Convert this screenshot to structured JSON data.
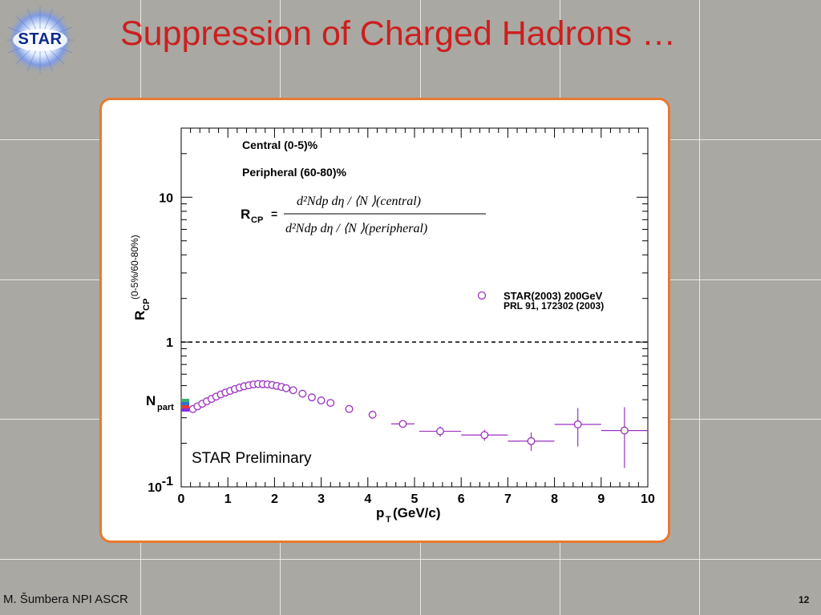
{
  "slide": {
    "title": "Suppression of Charged Hadrons …",
    "logo_text": "STAR",
    "footer_author": "M. Šumbera NPI ASCR",
    "page_number": "12"
  },
  "colors": {
    "title": "#cc1f1f",
    "panel_border": "#e8792e",
    "data_marker": "#9b30c0",
    "logo": "#0d2a8a"
  },
  "chart_data": {
    "type": "scatter",
    "title": "",
    "xlabel": "p",
    "xlabel_sub": "T",
    "xlabel_unit": "(GeV/c)",
    "ylabel": "R",
    "ylabel_sub": "CP",
    "ylabel_sup": "(0-5%/60-80%)",
    "x_range": [
      0,
      10
    ],
    "y_range": [
      0.1,
      30
    ],
    "y_scale": "log",
    "x_ticks": [
      "0",
      "1",
      "2",
      "3",
      "4",
      "5",
      "6",
      "7",
      "8",
      "9",
      "10"
    ],
    "y_ticks": [
      {
        "value": 10,
        "label": "10"
      },
      {
        "value": 1,
        "label": "1"
      },
      {
        "value": 0.1,
        "label": "10",
        "sup": "-1"
      }
    ],
    "reference_line": 1,
    "annotations": {
      "central": "Central (0-5)%",
      "peripheral": "Peripheral (60-80)%",
      "npart": "N",
      "npart_sub": "part",
      "preliminary": "STAR Preliminary",
      "formula_lhs": "R",
      "formula_lhs_sub": "CP",
      "formula_eq": "=",
      "formula_num": "d²Ndp dη / ⟨N ⟩(central)",
      "formula_den": "d²Ndp dη / ⟨N ⟩(peripheral)"
    },
    "legend": {
      "position": "right",
      "label": "STAR(2003) 200GeV",
      "reference": "PRL 91, 172302 (2003)"
    },
    "series": [
      {
        "name": "STAR(2003) 200GeV",
        "marker": "open-circle",
        "points": [
          {
            "x": 0.25,
            "y": 0.345
          },
          {
            "x": 0.35,
            "y": 0.36
          },
          {
            "x": 0.45,
            "y": 0.375
          },
          {
            "x": 0.55,
            "y": 0.39
          },
          {
            "x": 0.65,
            "y": 0.405
          },
          {
            "x": 0.75,
            "y": 0.42
          },
          {
            "x": 0.85,
            "y": 0.435
          },
          {
            "x": 0.95,
            "y": 0.448
          },
          {
            "x": 1.05,
            "y": 0.46
          },
          {
            "x": 1.15,
            "y": 0.473
          },
          {
            "x": 1.25,
            "y": 0.485
          },
          {
            "x": 1.35,
            "y": 0.495
          },
          {
            "x": 1.45,
            "y": 0.503
          },
          {
            "x": 1.55,
            "y": 0.51
          },
          {
            "x": 1.65,
            "y": 0.513
          },
          {
            "x": 1.75,
            "y": 0.512
          },
          {
            "x": 1.85,
            "y": 0.51
          },
          {
            "x": 1.95,
            "y": 0.505
          },
          {
            "x": 2.05,
            "y": 0.498
          },
          {
            "x": 2.15,
            "y": 0.49
          },
          {
            "x": 2.25,
            "y": 0.48
          },
          {
            "x": 2.4,
            "y": 0.465
          },
          {
            "x": 2.6,
            "y": 0.44
          },
          {
            "x": 2.8,
            "y": 0.415
          },
          {
            "x": 3.0,
            "y": 0.395
          },
          {
            "x": 3.2,
            "y": 0.38
          },
          {
            "x": 3.6,
            "y": 0.345
          },
          {
            "x": 4.1,
            "y": 0.315
          },
          {
            "x": 4.75,
            "y": 0.272,
            "xerr": 0.25
          },
          {
            "x": 5.55,
            "y": 0.242,
            "xerr": 0.45,
            "yerr": 0.02
          },
          {
            "x": 6.5,
            "y": 0.228,
            "xerr": 0.5,
            "yerr": 0.02
          },
          {
            "x": 7.5,
            "y": 0.207,
            "xerr": 0.5,
            "yerr": 0.03
          },
          {
            "x": 8.5,
            "y": 0.27,
            "xerr": 0.5,
            "yerr": 0.08
          },
          {
            "x": 9.5,
            "y": 0.245,
            "xerr": 0.5,
            "yerr": 0.11
          }
        ]
      }
    ]
  }
}
